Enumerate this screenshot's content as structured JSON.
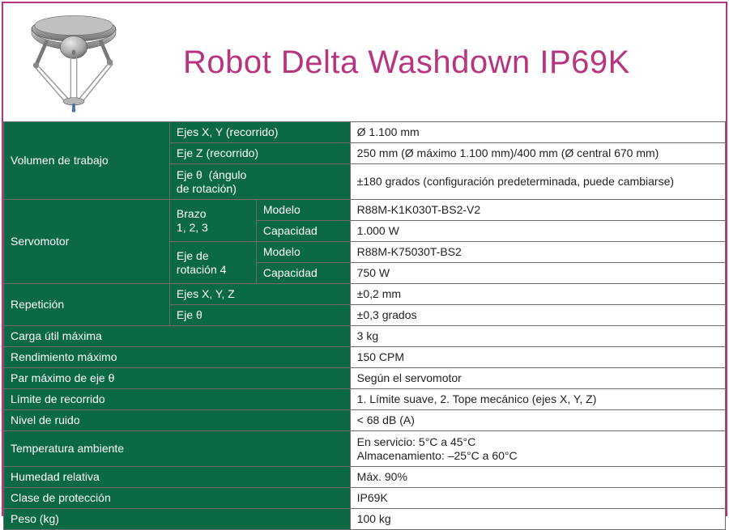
{
  "title": "Robot Delta Washdown IP69K",
  "colors": {
    "border": "#b7357e",
    "title": "#b7357e",
    "greenCell": "#0b6a43",
    "greenText": "#ffffff",
    "whiteCell": "#ffffff",
    "whiteText": "#222222",
    "cellBorder": "#6b6b6b"
  },
  "typography": {
    "titleSize": 40,
    "bodySize": 14,
    "fontFamily": "Arial, Helvetica, sans-serif"
  },
  "table": {
    "columnWidths": [
      "23%",
      "12%",
      "13%",
      "52%"
    ],
    "rows": [
      {
        "l1": "Volumen de trabajo",
        "l1_rowspan": 3,
        "l2": "Ejes X, Y (recorrido)",
        "l2_colspan": 2,
        "val": "Ø 1.100 mm"
      },
      {
        "l2": "Eje Z (recorrido)",
        "l2_colspan": 2,
        "val": "250 mm (Ø máximo 1.100 mm)/400 mm (Ø central 670 mm)"
      },
      {
        "l2": "Eje θ  (ángulo de rotación)",
        "l2_colspan": 2,
        "tall": true,
        "val": "±180 grados (configuración predeterminada, puede cambiarse)"
      },
      {
        "l1": "Servomotor",
        "l1_rowspan": 4,
        "l2": "Brazo 1, 2, 3",
        "l2_rowspan": 2,
        "l3": "Modelo",
        "val": "R88M-K1K030T-BS2-V2"
      },
      {
        "l3": "Capacidad",
        "val": "1.000 W"
      },
      {
        "l2": "Eje de rotación 4",
        "l2_rowspan": 2,
        "l3": "Modelo",
        "val": "R88M-K75030T-BS2"
      },
      {
        "l3": "Capacidad",
        "val": "750 W"
      },
      {
        "l1": "Repetición",
        "l1_rowspan": 2,
        "l2": "Ejes X, Y, Z",
        "l2_colspan": 2,
        "val": "±0,2 mm"
      },
      {
        "l2": "Eje θ",
        "l2_colspan": 2,
        "val": "±0,3 grados"
      },
      {
        "l1": "Carga útil máxima",
        "l1_colspan": 3,
        "val": "3 kg"
      },
      {
        "l1": "Rendimiento máximo",
        "l1_colspan": 3,
        "val": "150 CPM"
      },
      {
        "l1": "Par máximo de eje  θ",
        "l1_colspan": 3,
        "val": "Según el servomotor"
      },
      {
        "l1": "Límite de recorrido",
        "l1_colspan": 3,
        "val": "1. Límite suave, 2. Tope mecánico (ejes X, Y, Z)"
      },
      {
        "l1": "Nivel de ruido",
        "l1_colspan": 3,
        "val": "< 68 dB (A)"
      },
      {
        "l1": "Temperatura ambiente",
        "l1_colspan": 3,
        "tall": true,
        "val": "En servicio: 5°C a 45°C\nAlmacenamiento: –25°C a 60°C"
      },
      {
        "l1": "Humedad relativa",
        "l1_colspan": 3,
        "val": "Máx. 90%"
      },
      {
        "l1": "Clase de protección",
        "l1_colspan": 3,
        "val": "IP69K"
      },
      {
        "l1": "Peso (kg)",
        "l1_colspan": 3,
        "val": "100 kg"
      }
    ]
  }
}
